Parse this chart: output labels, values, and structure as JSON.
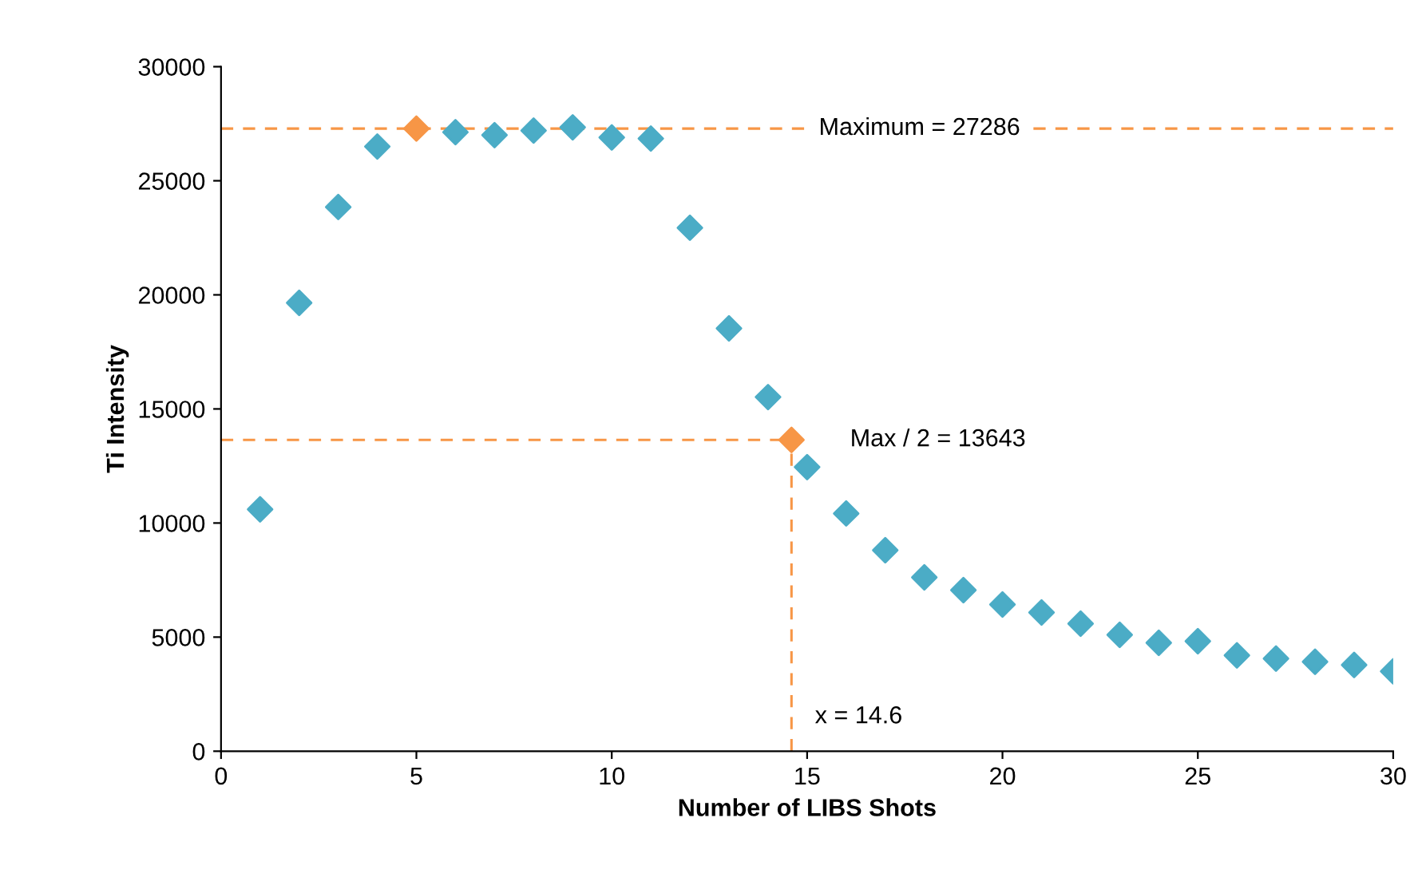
{
  "chart_data": {
    "type": "scatter",
    "xlabel": "Number of LIBS Shots",
    "ylabel": "Ti Intensity",
    "xlim": [
      0,
      30
    ],
    "ylim": [
      0,
      30000
    ],
    "xticks": [
      0,
      5,
      10,
      15,
      20,
      25,
      30
    ],
    "yticks": [
      0,
      5000,
      10000,
      15000,
      20000,
      25000,
      30000
    ],
    "grid": false,
    "legend": false,
    "marker": "diamond",
    "series": [
      {
        "color": "#4bacc6",
        "x": [
          1,
          2,
          3,
          4,
          6,
          7,
          8,
          9,
          10,
          11,
          12,
          13,
          14,
          15,
          16,
          17,
          18,
          19,
          20,
          21,
          22,
          23,
          24,
          25,
          26,
          27,
          28,
          29,
          30
        ],
        "values": [
          10600,
          19650,
          23850,
          26500,
          27130,
          27000,
          27200,
          27340,
          26900,
          26850,
          22940,
          18530,
          15520,
          12450,
          10420,
          8810,
          7620,
          7060,
          6430,
          6080,
          5590,
          5100,
          4750,
          4820,
          4200,
          4060,
          3920,
          3780,
          3500
        ]
      },
      {
        "color": "#f79646",
        "x": [
          5,
          14.6
        ],
        "values": [
          27286,
          13643
        ]
      }
    ],
    "ref_lines": [
      {
        "axis": "y",
        "value": 27286,
        "label": "Maximum = 27286",
        "color": "#f79646",
        "line_style": "dashed"
      },
      {
        "axis": "y",
        "value": 13643,
        "label": "Max / 2 = 13643",
        "color": "#f79646",
        "line_style": "dashed"
      },
      {
        "axis": "x",
        "value": 14.6,
        "label": "x = 14.6",
        "color": "#f79646",
        "line_style": "dashed"
      }
    ]
  }
}
